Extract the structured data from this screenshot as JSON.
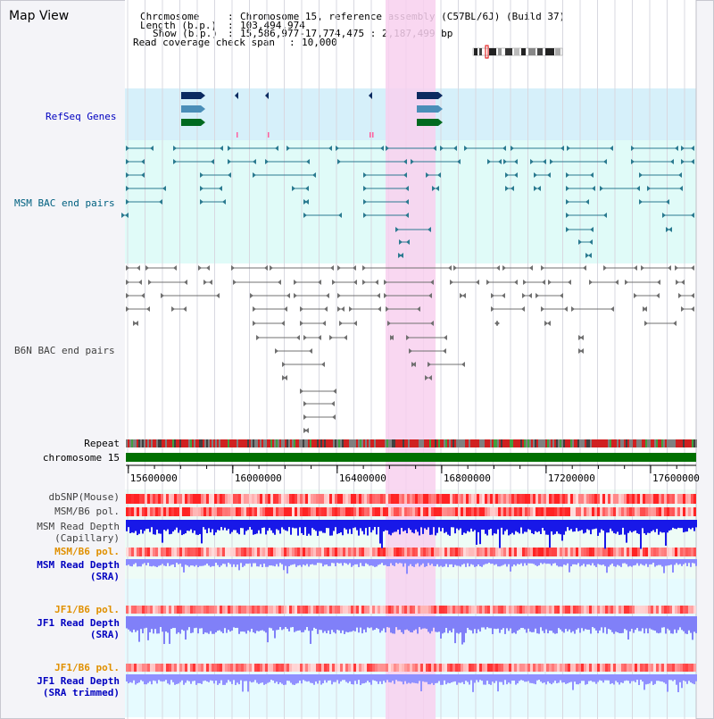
{
  "map_title": "Map View",
  "info": {
    "chromosome_key": "Chromosome",
    "chromosome_value": "Chromosome 15, reference assembly (C57BL/6J) (Build 37)",
    "length_key": "Length (b.p.)",
    "length_value": "103,494,974",
    "show_key": "Show (b.p.)",
    "show_value": "15,586,977-17,774,475 : 2,187,499 bp",
    "coverage_key": "Read coverage check span",
    "coverage_value": "10,000"
  },
  "tracks": {
    "refseq": "RefSeq Genes",
    "msm_bac": "MSM BAC end pairs",
    "b6n_bac": "B6N BAC end pairs",
    "repeat": "Repeat",
    "chromosome": "chromosome 15",
    "dbsnp": "dbSNP(Mouse)",
    "msm_b6_pol1": "MSM/B6 pol.",
    "msm_depth_cap_1": "MSM Read Depth",
    "msm_depth_cap_2": "(Capillary)",
    "msm_b6_pol2": "MSM/B6 pol.",
    "msm_depth_sra_1": "MSM Read Depth",
    "msm_depth_sra_2": "(SRA)",
    "jf1_b6_pol1": "JF1/B6 pol.",
    "jf1_depth_sra_1": "JF1 Read Depth",
    "jf1_depth_sra_2": "(SRA)",
    "jf1_b6_pol2": "JF1/B6 pol.",
    "jf1_depth_trim_1": "JF1 Read Depth",
    "jf1_depth_trim_2": "(SRA trimmed)"
  },
  "axis": {
    "ticks": [
      "15600000",
      "16000000",
      "16400000",
      "16800000",
      "17200000",
      "17600000"
    ],
    "tick_values": [
      15600000,
      16000000,
      16400000,
      16800000,
      17200000,
      17600000
    ],
    "start": 15586977,
    "end": 17774475
  },
  "colors": {
    "refseq_bg": "#d6f0fa",
    "msm_bg": "#e0fbf8",
    "highlight": "#f8d0ee",
    "chrom_bar": "#007000",
    "msm_gene": "#2a7a90",
    "b6n_gene": "#707070",
    "depth_blue": "#1010e0",
    "depth_light": "#8080ff",
    "snp_red": "#e02020",
    "label_blue": "#0000c0",
    "label_orange": "#e09000",
    "label_teal": "#006080"
  }
}
